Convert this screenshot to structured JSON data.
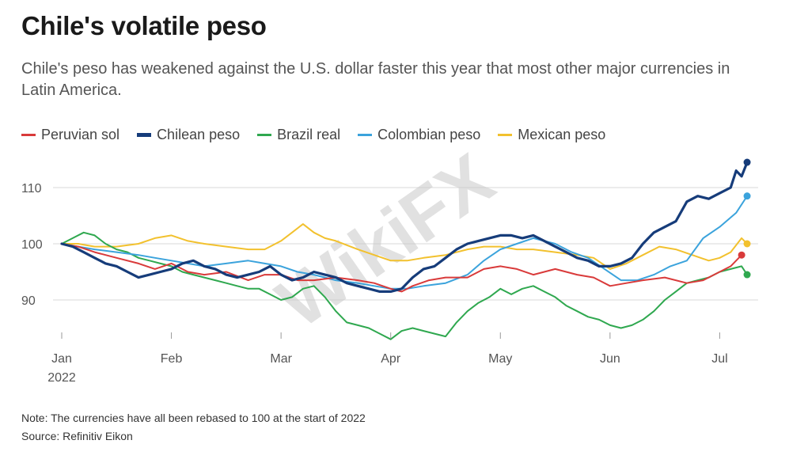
{
  "header": {
    "title": "Chile's volatile peso",
    "subtitle": "Chile's peso has weakened against the U.S. dollar faster this year that most other major currencies in Latin America."
  },
  "footer": {
    "note": "Note: The currencies have all been rebased to 100 at the start of 2022",
    "source": "Source: Refinitiv Eikon"
  },
  "watermark": "WikiFX",
  "chart_data": {
    "type": "line",
    "title": "Chile's volatile peso",
    "xlabel": "",
    "ylabel": "",
    "x_range": [
      0,
      6.3
    ],
    "ylim": [
      80,
      118
    ],
    "yticks": [
      90,
      100,
      110
    ],
    "ytick_labels": [
      "90",
      "100",
      "110"
    ],
    "xticks": [
      {
        "month": 0,
        "label": "Jan",
        "sublabel": "2022"
      },
      {
        "month": 1,
        "label": "Feb",
        "sublabel": ""
      },
      {
        "month": 2,
        "label": "Mar",
        "sublabel": ""
      },
      {
        "month": 3,
        "label": "Apr",
        "sublabel": ""
      },
      {
        "month": 4,
        "label": "May",
        "sublabel": ""
      },
      {
        "month": 5,
        "label": "Jun",
        "sublabel": ""
      },
      {
        "month": 6,
        "label": "Jul",
        "sublabel": ""
      }
    ],
    "grid": true,
    "legend_position": "top-left",
    "series": [
      {
        "name": "Peruvian sol",
        "color": "#d93a3a",
        "x": [
          0,
          0.15,
          0.3,
          0.5,
          0.7,
          0.85,
          1.0,
          1.15,
          1.3,
          1.5,
          1.7,
          1.85,
          2.0,
          2.15,
          2.3,
          2.5,
          2.7,
          2.85,
          3.0,
          3.1,
          3.2,
          3.35,
          3.5,
          3.7,
          3.85,
          4.0,
          4.15,
          4.3,
          4.5,
          4.7,
          4.85,
          5.0,
          5.15,
          5.3,
          5.5,
          5.7,
          5.85,
          6.0,
          6.1,
          6.2
        ],
        "y": [
          100,
          99.5,
          98.5,
          97.5,
          96.5,
          95.5,
          96.5,
          95,
          94.5,
          95,
          93.5,
          94.5,
          94.5,
          93.5,
          93.5,
          94,
          93.5,
          93,
          92,
          91.5,
          92.5,
          93.5,
          94,
          94,
          95.5,
          96,
          95.5,
          94.5,
          95.5,
          94.5,
          94,
          92.5,
          93,
          93.5,
          94,
          93,
          93.5,
          95,
          96,
          98
        ]
      },
      {
        "name": "Chilean peso",
        "color": "#163c7a",
        "x": [
          0,
          0.1,
          0.2,
          0.3,
          0.4,
          0.5,
          0.6,
          0.7,
          0.8,
          0.9,
          1.0,
          1.1,
          1.2,
          1.3,
          1.4,
          1.5,
          1.6,
          1.7,
          1.8,
          1.9,
          2.0,
          2.1,
          2.2,
          2.3,
          2.4,
          2.5,
          2.6,
          2.7,
          2.8,
          2.9,
          3.0,
          3.1,
          3.2,
          3.3,
          3.4,
          3.5,
          3.6,
          3.7,
          3.8,
          3.9,
          4.0,
          4.1,
          4.2,
          4.3,
          4.4,
          4.5,
          4.6,
          4.7,
          4.8,
          4.9,
          5.0,
          5.1,
          5.2,
          5.3,
          5.4,
          5.5,
          5.6,
          5.7,
          5.8,
          5.9,
          6.0,
          6.1,
          6.15,
          6.2,
          6.25
        ],
        "y": [
          100,
          99.5,
          98.5,
          97.5,
          96.5,
          96,
          95,
          94,
          94.5,
          95,
          95.5,
          96.5,
          97,
          96,
          95.5,
          94.5,
          94,
          94.5,
          95,
          96,
          94.5,
          93.5,
          94,
          95,
          94.5,
          94,
          93,
          92.5,
          92,
          91.5,
          91.5,
          92,
          94,
          95.5,
          96,
          97.5,
          99,
          100,
          100.5,
          101,
          101.5,
          101.5,
          101,
          101.5,
          100.5,
          99.5,
          98.5,
          97.5,
          97,
          96,
          96,
          96.5,
          97.5,
          100,
          102,
          103,
          104,
          107.5,
          108.5,
          108,
          109,
          110,
          113,
          112,
          114.5
        ]
      },
      {
        "name": "Brazil real",
        "color": "#2fa84f",
        "x": [
          0,
          0.1,
          0.2,
          0.3,
          0.4,
          0.5,
          0.6,
          0.7,
          0.8,
          0.9,
          1.0,
          1.1,
          1.2,
          1.3,
          1.4,
          1.5,
          1.6,
          1.7,
          1.8,
          1.9,
          2.0,
          2.1,
          2.2,
          2.3,
          2.4,
          2.5,
          2.6,
          2.7,
          2.8,
          2.9,
          3.0,
          3.1,
          3.2,
          3.3,
          3.4,
          3.5,
          3.6,
          3.7,
          3.8,
          3.9,
          4.0,
          4.1,
          4.2,
          4.3,
          4.4,
          4.5,
          4.6,
          4.7,
          4.8,
          4.9,
          5.0,
          5.1,
          5.2,
          5.3,
          5.4,
          5.5,
          5.6,
          5.7,
          5.8,
          5.9,
          6.0,
          6.1,
          6.2,
          6.25
        ],
        "y": [
          100,
          101,
          102,
          101.5,
          100,
          99,
          98.5,
          97.5,
          97,
          96.5,
          96,
          95,
          94.5,
          94,
          93.5,
          93,
          92.5,
          92,
          92,
          91,
          90,
          90.5,
          92,
          92.5,
          90.5,
          88,
          86,
          85.5,
          85,
          84,
          83,
          84.5,
          85,
          84.5,
          84,
          83.5,
          86,
          88,
          89.5,
          90.5,
          92,
          91,
          92,
          92.5,
          91.5,
          90.5,
          89,
          88,
          87,
          86.5,
          85.5,
          85,
          85.5,
          86.5,
          88,
          90,
          91.5,
          93,
          93.5,
          94,
          95,
          95.5,
          96,
          94.5
        ]
      },
      {
        "name": "Colombian peso",
        "color": "#3ba3dc",
        "x": [
          0,
          0.15,
          0.3,
          0.5,
          0.7,
          0.85,
          1.0,
          1.15,
          1.3,
          1.5,
          1.7,
          1.85,
          2.0,
          2.15,
          2.3,
          2.5,
          2.7,
          2.85,
          3.0,
          3.15,
          3.3,
          3.5,
          3.7,
          3.85,
          4.0,
          4.15,
          4.3,
          4.5,
          4.65,
          4.8,
          4.95,
          5.1,
          5.25,
          5.4,
          5.55,
          5.7,
          5.85,
          6.0,
          6.15,
          6.25
        ],
        "y": [
          100,
          99.5,
          99,
          98.5,
          98,
          97.5,
          97,
          96.5,
          96,
          96.5,
          97,
          96.5,
          96,
          95,
          94.5,
          93.5,
          93,
          92.5,
          92,
          92,
          92.5,
          93,
          94.5,
          97,
          99,
          100,
          101,
          100,
          98.5,
          97.5,
          95.5,
          93.5,
          93.5,
          94.5,
          96,
          97,
          101,
          103,
          105.5,
          108.5
        ]
      },
      {
        "name": "Mexican peso",
        "color": "#f2c12e",
        "x": [
          0,
          0.15,
          0.3,
          0.5,
          0.7,
          0.85,
          1.0,
          1.15,
          1.3,
          1.5,
          1.7,
          1.85,
          2.0,
          2.1,
          2.2,
          2.3,
          2.4,
          2.5,
          2.7,
          2.85,
          3.0,
          3.15,
          3.3,
          3.5,
          3.7,
          3.85,
          4.0,
          4.15,
          4.3,
          4.5,
          4.7,
          4.85,
          5.0,
          5.15,
          5.3,
          5.45,
          5.6,
          5.75,
          5.9,
          6.0,
          6.1,
          6.2,
          6.25
        ],
        "y": [
          100,
          100,
          99.5,
          99.5,
          100,
          101,
          101.5,
          100.5,
          100,
          99.5,
          99,
          99,
          100.5,
          102,
          103.5,
          102,
          101,
          100.5,
          99,
          98,
          97,
          97,
          97.5,
          98,
          99,
          99.5,
          99.5,
          99,
          99,
          98.5,
          98,
          97.5,
          95.5,
          96.5,
          98,
          99.5,
          99,
          98,
          97,
          97.5,
          98.5,
          101,
          100
        ]
      }
    ]
  }
}
